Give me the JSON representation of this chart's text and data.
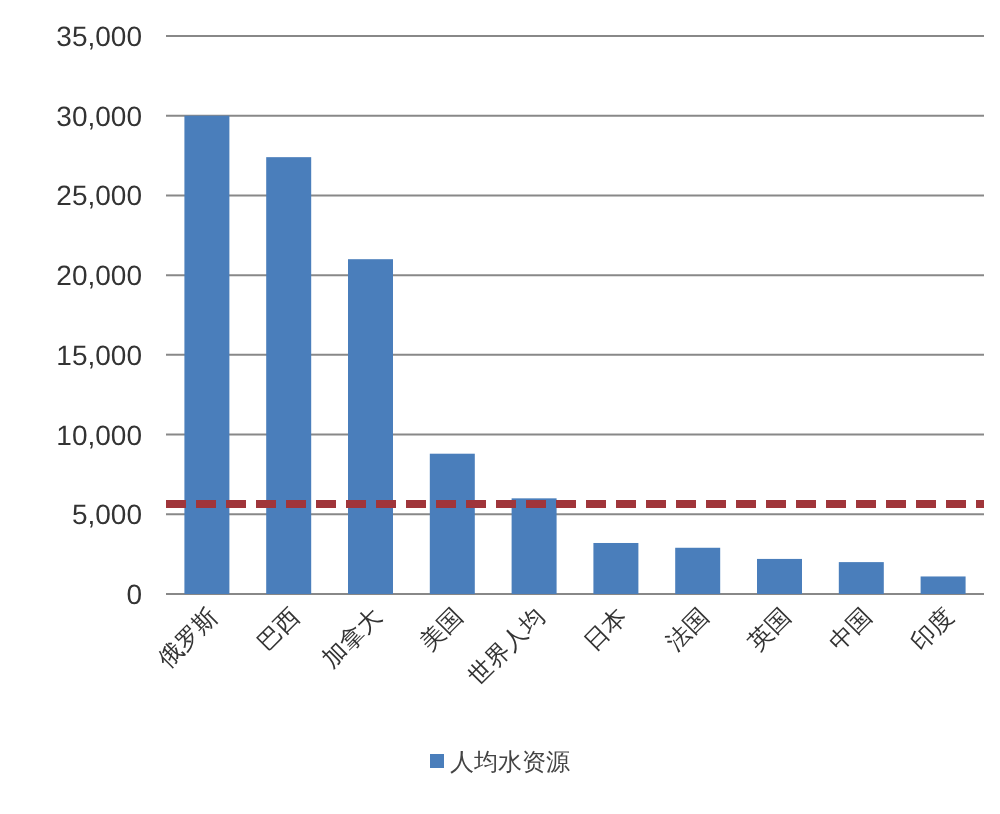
{
  "chart_data": {
    "type": "bar",
    "categories": [
      "俄罗斯",
      "巴西",
      "加拿大",
      "美国",
      "世界人均",
      "日本",
      "法国",
      "英国",
      "中国",
      "印度"
    ],
    "series": [
      {
        "name": "人均水资源",
        "color": "#4a7ebb",
        "values": [
          30000,
          27400,
          21000,
          8800,
          6000,
          3200,
          2900,
          2200,
          2000,
          1100
        ]
      }
    ],
    "ylim": [
      0,
      35000
    ],
    "yticks": [
      {
        "value": 0,
        "label": "0"
      },
      {
        "value": 5000,
        "label": "5,000"
      },
      {
        "value": 10000,
        "label": "10,000"
      },
      {
        "value": 15000,
        "label": "15,000"
      },
      {
        "value": 20000,
        "label": "20,000"
      },
      {
        "value": 25000,
        "label": "25,000"
      },
      {
        "value": 30000,
        "label": "30,000"
      },
      {
        "value": 35000,
        "label": "35,000"
      }
    ],
    "grid": "y",
    "legend": "bottom",
    "ref_lines": [
      {
        "axis": "y",
        "value": 5650,
        "color": "#a0353a",
        "line_style": "dashed"
      }
    ]
  }
}
